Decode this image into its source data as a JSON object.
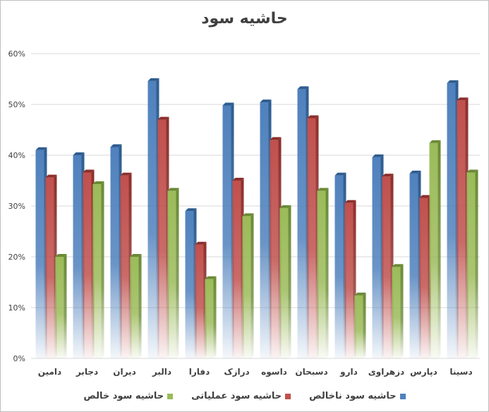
{
  "chart_data": {
    "type": "bar",
    "title": "حاشیه سود",
    "categories": [
      "دامین",
      "دجابر",
      "دیران",
      "دالبر",
      "دفارا",
      "درازک",
      "داسوه",
      "دسبحان",
      "دارو",
      "دزهراوی",
      "دپارس",
      "دسینا"
    ],
    "series": [
      {
        "name": "حاشیه سود ناخالص",
        "color": "#4f81bd",
        "values": [
          41,
          40,
          41.6,
          54.6,
          29,
          49.8,
          50.4,
          53,
          36,
          39.6,
          36.4,
          54.2
        ]
      },
      {
        "name": "حاشیه سود عملیاتی",
        "color": "#c0504d",
        "values": [
          35.6,
          36.6,
          36,
          47,
          22.4,
          35,
          43,
          47.3,
          30.6,
          35.8,
          31.6,
          50.8
        ]
      },
      {
        "name": "حاشیه سود خالص",
        "color": "#9bbb59",
        "values": [
          20,
          34.3,
          20,
          33,
          15.6,
          28,
          29.6,
          33,
          12.4,
          18,
          42.4,
          36.6
        ]
      }
    ],
    "y_ticks": [
      "0%",
      "10%",
      "20%",
      "30%",
      "40%",
      "50%",
      "60%"
    ],
    "ylim": [
      0,
      60
    ],
    "grid": true,
    "legend_position": "bottom"
  }
}
